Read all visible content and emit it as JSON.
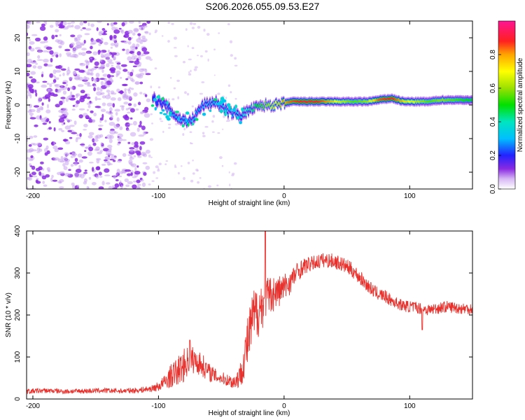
{
  "figure_title": "S206.2026.055.09.53.E27",
  "colors": {
    "snr_line": "#e8312c",
    "spectrum_low": "#8a2be2"
  },
  "chart_data": [
    {
      "type": "heatmap",
      "title": "",
      "xlabel": "Height of straight line (km)",
      "ylabel": "Frequency (Hz)",
      "xlim": [
        -205,
        150
      ],
      "ylim": [
        -25,
        25
      ],
      "xticks": [
        "-200",
        "-100",
        "0",
        "100"
      ],
      "xtick_values": [
        -200,
        -100,
        0,
        100
      ],
      "yticks": [
        "20",
        "10",
        "0",
        "-10",
        "-20"
      ],
      "ytick_values": [
        20,
        10,
        0,
        -10,
        -20
      ],
      "colorbar": {
        "label": "Normalized spectral amplitude",
        "range": [
          0,
          1
        ],
        "ticks": [
          "0.0",
          "0.2",
          "0.4",
          "0.6",
          "0.8"
        ],
        "tick_values": [
          0.0,
          0.2,
          0.4,
          0.6,
          0.8
        ]
      },
      "dominant_frequency_trace": {
        "x": [
          -105,
          -95,
          -85,
          -75,
          -65,
          -55,
          -45,
          -35,
          -25,
          -15,
          -5,
          5,
          15,
          25,
          35,
          45,
          55,
          65,
          75,
          85,
          95,
          105,
          115,
          125,
          135,
          145
        ],
        "frequency_hz": [
          2,
          0,
          -4,
          -5,
          0,
          1,
          -2,
          -3,
          -1,
          0,
          0,
          1,
          1,
          1,
          1,
          1,
          1,
          1,
          1.5,
          2,
          1,
          1,
          1,
          1.5,
          1.5,
          1.5
        ],
        "amplitude": [
          0.2,
          0.25,
          0.3,
          0.3,
          0.3,
          0.35,
          0.3,
          0.35,
          0.45,
          0.6,
          0.75,
          0.85,
          0.9,
          0.9,
          0.8,
          0.65,
          0.55,
          0.6,
          0.85,
          0.9,
          0.75,
          0.65,
          0.55,
          0.6,
          0.55,
          0.5
        ]
      }
    },
    {
      "type": "line",
      "title": "",
      "xlabel": "Height of straight line (km)",
      "ylabel": "SNR (10 * v/v)",
      "xlim": [
        -205,
        150
      ],
      "ylim": [
        0,
        400
      ],
      "xticks": [
        "-200",
        "-100",
        "0",
        "100"
      ],
      "xtick_values": [
        -200,
        -100,
        0,
        100
      ],
      "yticks": [
        "400",
        "300",
        "200",
        "100",
        "0"
      ],
      "ytick_values": [
        400,
        300,
        200,
        100,
        0
      ],
      "series": [
        {
          "name": "SNR",
          "x": [
            -205,
            -190,
            -175,
            -160,
            -145,
            -130,
            -115,
            -105,
            -100,
            -95,
            -90,
            -85,
            -80,
            -75,
            -70,
            -65,
            -60,
            -55,
            -50,
            -45,
            -40,
            -35,
            -30,
            -25,
            -20,
            -15,
            -10,
            -5,
            0,
            5,
            10,
            15,
            20,
            25,
            30,
            35,
            40,
            45,
            50,
            55,
            60,
            65,
            70,
            75,
            80,
            85,
            90,
            95,
            100,
            105,
            110,
            115,
            120,
            125,
            130,
            135,
            140,
            145,
            150
          ],
          "values": [
            18,
            20,
            18,
            19,
            20,
            19,
            21,
            25,
            30,
            40,
            55,
            65,
            80,
            95,
            90,
            80,
            65,
            55,
            50,
            45,
            40,
            55,
            120,
            190,
            215,
            235,
            250,
            255,
            265,
            280,
            300,
            315,
            320,
            325,
            330,
            330,
            328,
            322,
            315,
            305,
            290,
            275,
            260,
            250,
            245,
            235,
            228,
            222,
            220,
            218,
            215,
            212,
            215,
            218,
            220,
            218,
            216,
            215,
            215
          ],
          "noise_amplitude": [
            6,
            6,
            6,
            6,
            6,
            6,
            7,
            8,
            12,
            18,
            28,
            35,
            40,
            35,
            30,
            28,
            22,
            18,
            15,
            15,
            18,
            30,
            60,
            70,
            65,
            55,
            45,
            40,
            35,
            30,
            25,
            20,
            18,
            18,
            18,
            18,
            18,
            18,
            18,
            18,
            18,
            16,
            16,
            15,
            15,
            15,
            14,
            14,
            14,
            14,
            14,
            14,
            14,
            14,
            14,
            14,
            14,
            14,
            14
          ],
          "peaks": [
            {
              "x": -15,
              "value": 400
            },
            {
              "x": -75,
              "value": 140
            },
            {
              "x": 110,
              "value": 165
            }
          ]
        }
      ]
    }
  ]
}
